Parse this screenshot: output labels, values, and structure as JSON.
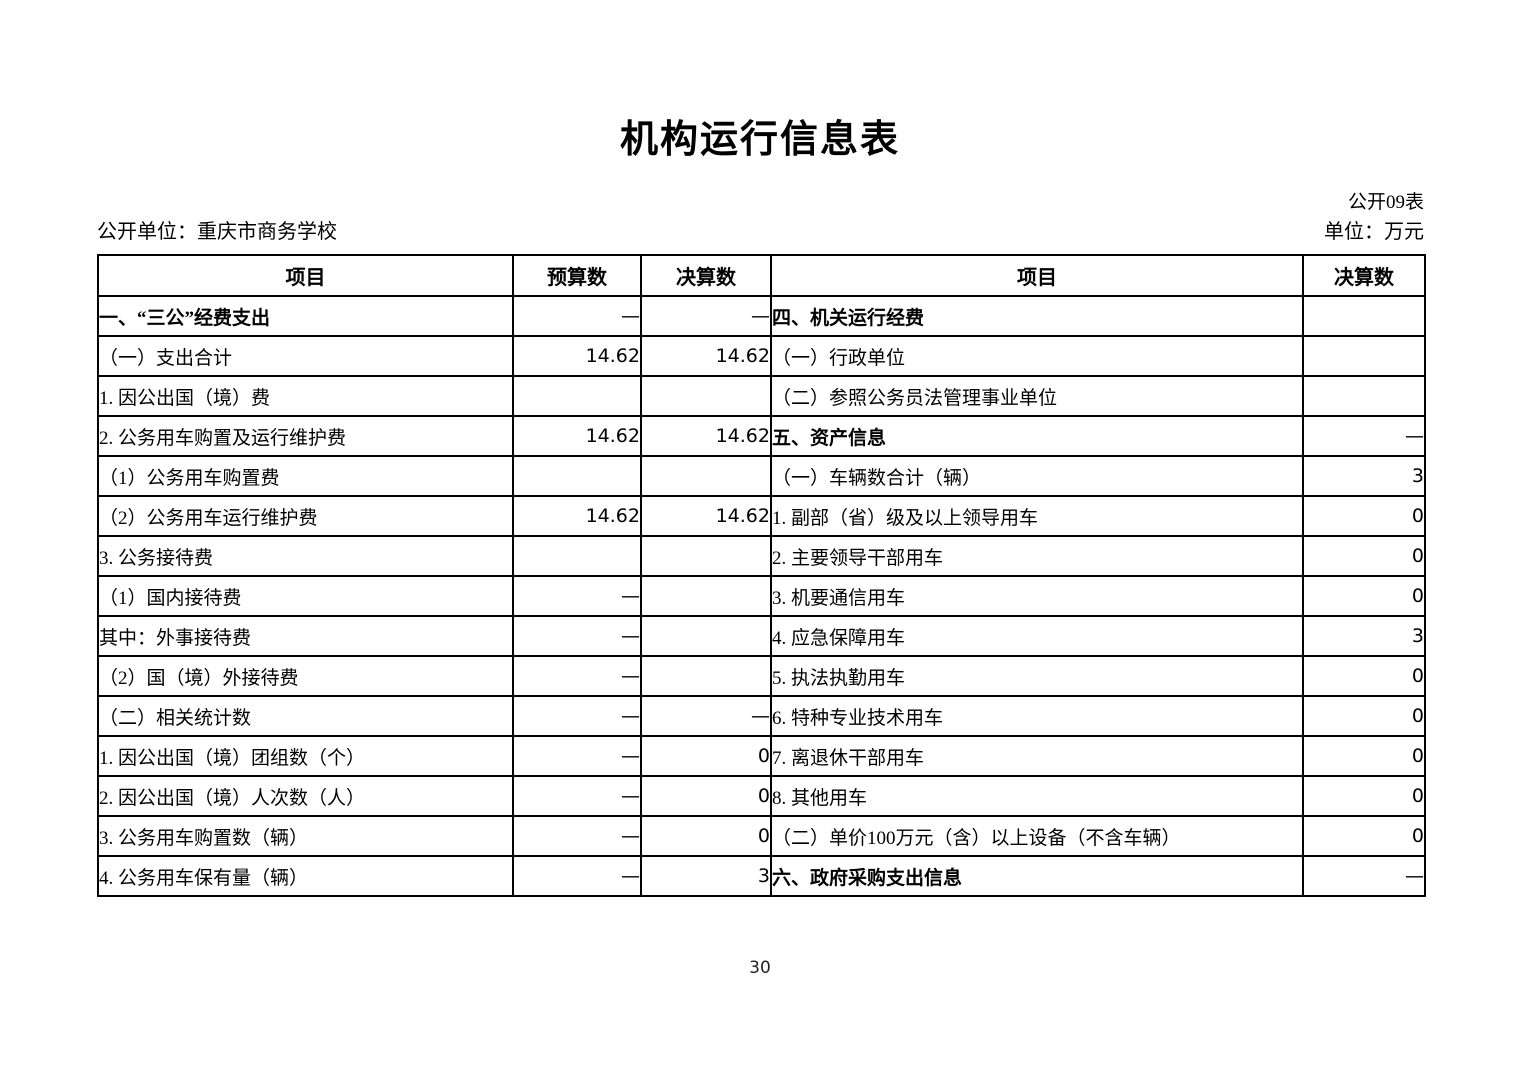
{
  "page": {
    "title": "机构运行信息表",
    "table_code": "公开09表",
    "publisher": "公开单位：重庆市商务学校",
    "unit": "单位：万元",
    "page_number": "30"
  },
  "table": {
    "headers": {
      "left_item": "项目",
      "left_budget": "预算数",
      "left_final": "决算数",
      "right_item": "项目",
      "right_final": "决算数"
    },
    "left_rows": [
      {
        "label": "一、“三公”经费支出",
        "budget": "—",
        "final": "—",
        "section": true,
        "indent": 0
      },
      {
        "label": "（一）支出合计",
        "budget": "14.62",
        "final": "14.62",
        "section": false,
        "indent": 0
      },
      {
        "label": "1. 因公出国（境）费",
        "budget": "",
        "final": "",
        "section": false,
        "indent": 1
      },
      {
        "label": "2. 公务用车购置及运行维护费",
        "budget": "14.62",
        "final": "14.62",
        "section": false,
        "indent": 1
      },
      {
        "label": "（1）公务用车购置费",
        "budget": "",
        "final": "",
        "section": false,
        "indent": 2
      },
      {
        "label": "（2）公务用车运行维护费",
        "budget": "14.62",
        "final": "14.62",
        "section": false,
        "indent": 2
      },
      {
        "label": "3. 公务接待费",
        "budget": "",
        "final": "",
        "section": false,
        "indent": 1
      },
      {
        "label": "（1）国内接待费",
        "budget": "—",
        "final": "",
        "section": false,
        "indent": 2
      },
      {
        "label": "其中：外事接待费",
        "budget": "—",
        "final": "",
        "section": false,
        "indent": 3
      },
      {
        "label": "（2）国（境）外接待费",
        "budget": "—",
        "final": "",
        "section": false,
        "indent": 2
      },
      {
        "label": "（二）相关统计数",
        "budget": "—",
        "final": "—",
        "section": false,
        "indent": 0
      },
      {
        "label": "1. 因公出国（境）团组数（个）",
        "budget": "—",
        "final": "0",
        "section": false,
        "indent": 1
      },
      {
        "label": "2. 因公出国（境）人次数（人）",
        "budget": "—",
        "final": "0",
        "section": false,
        "indent": 1
      },
      {
        "label": "3. 公务用车购置数（辆）",
        "budget": "—",
        "final": "0",
        "section": false,
        "indent": 1
      },
      {
        "label": "4. 公务用车保有量（辆）",
        "budget": "—",
        "final": "3",
        "section": false,
        "indent": 1
      }
    ],
    "right_rows": [
      {
        "label": "四、机关运行经费",
        "final": "",
        "section": true,
        "indent": 0
      },
      {
        "label": "（一）行政单位",
        "final": "",
        "section": false,
        "indent": 0
      },
      {
        "label": "（二）参照公务员法管理事业单位",
        "final": "",
        "section": false,
        "indent": 0
      },
      {
        "label": "五、资产信息",
        "final": "—",
        "section": true,
        "indent": 0
      },
      {
        "label": "（一）车辆数合计（辆）",
        "final": "3",
        "section": false,
        "indent": 0
      },
      {
        "label": "1. 副部（省）级及以上领导用车",
        "final": "0",
        "section": false,
        "indent": 1
      },
      {
        "label": "2. 主要领导干部用车",
        "final": "0",
        "section": false,
        "indent": 1
      },
      {
        "label": "3. 机要通信用车",
        "final": "0",
        "section": false,
        "indent": 1
      },
      {
        "label": "4. 应急保障用车",
        "final": "3",
        "section": false,
        "indent": 1
      },
      {
        "label": "5. 执法执勤用车",
        "final": "0",
        "section": false,
        "indent": 1
      },
      {
        "label": "6. 特种专业技术用车",
        "final": "0",
        "section": false,
        "indent": 1
      },
      {
        "label": "7. 离退休干部用车",
        "final": "0",
        "section": false,
        "indent": 1
      },
      {
        "label": "8. 其他用车",
        "final": "0",
        "section": false,
        "indent": 1
      },
      {
        "label": "（二）单价100万元（含）以上设备（不含车辆）",
        "final": "0",
        "section": false,
        "indent": 0
      },
      {
        "label": "六、政府采购支出信息",
        "final": "—",
        "section": true,
        "indent": 0
      }
    ]
  }
}
